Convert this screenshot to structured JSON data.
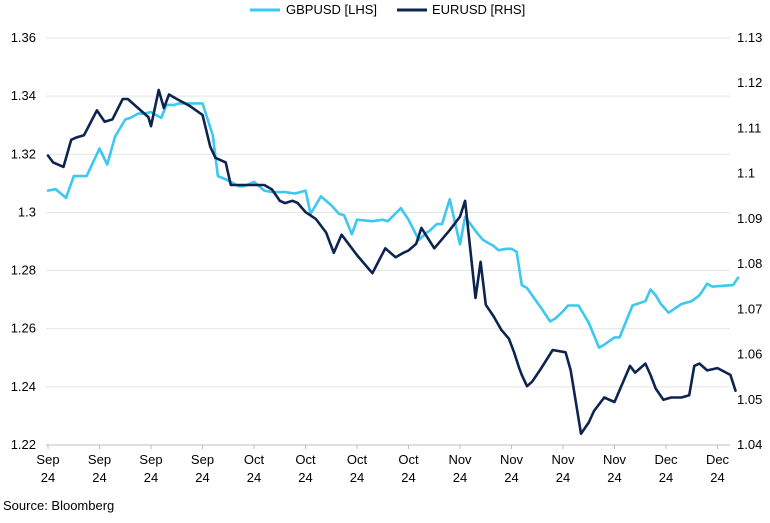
{
  "chart_data": {
    "type": "line",
    "title": "",
    "legend": {
      "placement": "top-center",
      "entries": [
        "GBPUSD [LHS]",
        "EURUSD [RHS]"
      ]
    },
    "left_axis": {
      "ylim": [
        1.22,
        1.36
      ],
      "ticks": [
        "1.22",
        "1.24",
        "1.26",
        "1.28",
        "1.3",
        "1.32",
        "1.34",
        "1.36"
      ]
    },
    "right_axis": {
      "ylim": [
        1.04,
        1.13
      ],
      "ticks": [
        "1.04",
        "1.05",
        "1.06",
        "1.07",
        "1.08",
        "1.09",
        "1.1",
        "1.11",
        "1.12",
        "1.13"
      ]
    },
    "x_ticks": [
      [
        "Sep",
        "24"
      ],
      [
        "Sep",
        "24"
      ],
      [
        "Sep",
        "24"
      ],
      [
        "Sep",
        "24"
      ],
      [
        "Oct",
        "24"
      ],
      [
        "Oct",
        "24"
      ],
      [
        "Oct",
        "24"
      ],
      [
        "Oct",
        "24"
      ],
      [
        "Nov",
        "24"
      ],
      [
        "Nov",
        "24"
      ],
      [
        "Nov",
        "24"
      ],
      [
        "Nov",
        "24"
      ],
      [
        "Dec",
        "24"
      ],
      [
        "Dec",
        "24"
      ]
    ],
    "grid": "horizontal",
    "series": [
      {
        "name": "GBPUSD [LHS]",
        "axis": "left",
        "color": "#3cc8ef",
        "x": [
          0,
          0.15,
          0.35,
          0.5,
          0.6,
          0.75,
          1.0,
          1.15,
          1.3,
          1.5,
          1.6,
          1.75,
          1.85,
          2.0,
          2.2,
          2.3,
          2.45,
          2.55,
          2.7,
          3.0,
          3.2,
          3.3,
          3.5,
          3.7,
          3.8,
          4.0,
          4.2,
          4.35,
          4.5,
          4.6,
          4.8,
          5.0,
          5.1,
          5.3,
          5.5,
          5.65,
          5.75,
          5.9,
          6.0,
          6.3,
          6.5,
          6.6,
          6.85,
          7.0,
          7.2,
          7.35,
          7.4,
          7.55,
          7.65,
          7.8,
          8.0,
          8.1,
          8.35,
          8.45,
          8.55,
          8.65,
          8.75,
          8.9,
          9.0,
          9.1,
          9.2,
          9.3,
          9.5,
          9.6,
          9.75,
          9.85,
          10.0,
          10.1,
          10.3,
          10.5,
          10.7,
          10.8,
          11.0,
          11.1,
          11.35,
          11.6,
          11.7,
          11.8,
          11.9,
          12.05,
          12.3,
          12.5,
          12.65,
          12.8,
          12.9,
          13.3,
          13.4
        ],
        "values": [
          1.3075,
          1.308,
          1.305,
          1.3125,
          1.3125,
          1.3125,
          1.322,
          1.3165,
          1.326,
          1.332,
          1.3325,
          1.334,
          1.334,
          1.3345,
          1.3325,
          1.337,
          1.337,
          1.3375,
          1.3375,
          1.3375,
          1.3265,
          1.3125,
          1.311,
          1.309,
          1.309,
          1.3105,
          1.3075,
          1.307,
          1.307,
          1.307,
          1.3065,
          1.3075,
          1.2995,
          1.3055,
          1.3025,
          1.2995,
          1.299,
          1.2925,
          1.2975,
          1.297,
          1.2975,
          1.297,
          1.3015,
          1.2975,
          1.2905,
          1.293,
          1.2935,
          1.296,
          1.296,
          1.3045,
          1.289,
          1.2985,
          1.2925,
          1.2905,
          1.2895,
          1.2885,
          1.287,
          1.2875,
          1.2875,
          1.2865,
          1.275,
          1.274,
          1.269,
          1.2665,
          1.2625,
          1.2635,
          1.266,
          1.268,
          1.268,
          1.262,
          1.2535,
          1.2545,
          1.257,
          1.257,
          1.268,
          1.2695,
          1.2735,
          1.2715,
          1.2685,
          1.2655,
          1.2685,
          1.2695,
          1.2715,
          1.2755,
          1.2745,
          1.275,
          1.2775
        ]
      },
      {
        "name": "EURUSD [RHS]",
        "axis": "right",
        "color": "#0e2450",
        "x": [
          0,
          0.1,
          0.3,
          0.45,
          0.55,
          0.7,
          0.95,
          1.1,
          1.25,
          1.45,
          1.55,
          1.75,
          1.95,
          2.0,
          2.15,
          2.25,
          2.35,
          2.5,
          2.75,
          3.0,
          3.15,
          3.25,
          3.45,
          3.55,
          3.65,
          3.8,
          4.0,
          4.2,
          4.35,
          4.5,
          4.6,
          4.75,
          4.85,
          5.0,
          5.2,
          5.4,
          5.55,
          5.7,
          6.0,
          6.3,
          6.55,
          6.75,
          6.9,
          7.0,
          7.15,
          7.25,
          7.5,
          7.8,
          8.0,
          8.1,
          8.3,
          8.4,
          8.5,
          8.65,
          8.8,
          8.95,
          9.05,
          9.15,
          9.2,
          9.3,
          9.4,
          9.55,
          9.8,
          10.05,
          10.15,
          10.35,
          10.5,
          10.6,
          10.8,
          11.0,
          11.3,
          11.4,
          11.6,
          11.7,
          11.8,
          11.95,
          12.1,
          12.3,
          12.45,
          12.55,
          12.65,
          12.8,
          13.0,
          13.25,
          13.35
        ],
        "values": [
          1.104,
          1.1025,
          1.1015,
          1.1075,
          1.108,
          1.1085,
          1.114,
          1.1115,
          1.112,
          1.1165,
          1.1165,
          1.1145,
          1.1125,
          1.1105,
          1.1185,
          1.1145,
          1.1175,
          1.1165,
          1.115,
          1.113,
          1.106,
          1.1035,
          1.1025,
          1.0975,
          1.0975,
          1.0975,
          1.0975,
          1.0975,
          1.0965,
          1.094,
          1.0935,
          1.094,
          1.0935,
          1.0915,
          1.09,
          1.087,
          1.0825,
          1.0865,
          1.082,
          1.078,
          1.0835,
          1.0815,
          1.0825,
          1.083,
          1.0845,
          1.088,
          1.0835,
          1.0875,
          1.0905,
          1.094,
          1.0725,
          1.0805,
          1.071,
          1.0685,
          1.0655,
          1.0635,
          1.0605,
          1.057,
          1.0555,
          1.053,
          1.054,
          1.0565,
          1.061,
          1.0605,
          1.0565,
          1.0425,
          1.045,
          1.0475,
          1.0505,
          1.0495,
          1.0575,
          1.056,
          1.058,
          1.0555,
          1.0525,
          1.05,
          1.0505,
          1.0505,
          1.051,
          1.0575,
          1.058,
          1.0565,
          1.057,
          1.0555,
          1.052
        ]
      }
    ]
  },
  "source": "Source: Bloomberg"
}
